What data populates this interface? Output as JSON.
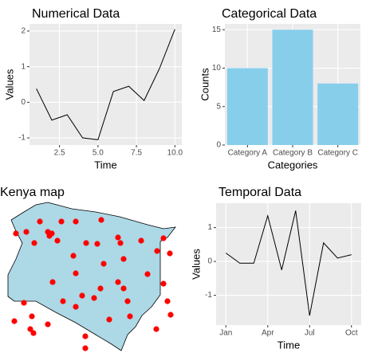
{
  "chart_data": [
    {
      "type": "line",
      "title": "Numerical Data",
      "x_label": "Time",
      "y_label": "Values",
      "x": [
        1,
        2,
        3,
        4,
        5,
        6,
        7,
        8,
        9,
        10
      ],
      "values": [
        0.38,
        -0.5,
        -0.35,
        -1.0,
        -1.05,
        0.3,
        0.45,
        0.05,
        0.95,
        2.05
      ],
      "color": "#000000",
      "xlim": [
        0.55,
        10.45
      ],
      "xticks": [
        2.5,
        {
          "value": 5,
          "label": "5.0"
        },
        {
          "value": 7.5,
          "label": "7.5"
        },
        {
          "value": 10,
          "label": "10.0"
        }
      ],
      "ylim": [
        -1.2,
        2.2
      ],
      "yticks": [
        -1,
        0,
        1,
        2
      ],
      "grid": true
    },
    {
      "type": "bar",
      "title": "Categorical Data",
      "x_label": "Categories",
      "y_label": "Counts",
      "categories": [
        "Category A",
        "Category B",
        "Category C"
      ],
      "values": [
        10,
        15,
        8
      ],
      "color": "#87ceeb",
      "ylim": [
        0,
        15.75
      ],
      "yticks": [
        0,
        5,
        10,
        15
      ],
      "grid": true
    },
    {
      "type": "map",
      "title": "Kenya map",
      "color": "#ff0000",
      "xlim": [
        33.5,
        42.78
      ],
      "ylim": [
        -4.9,
        5
      ],
      "x": [
        34.3,
        34.82,
        35.5,
        35.98,
        35.9,
        36.1,
        36.58,
        37.3,
        38.58,
        39.42,
        36.38,
        37.18,
        35.22,
        37.82,
        38.38,
        39.54,
        40.58,
        41.7,
        41.38,
        42.02,
        39.7,
        38.7,
        40.9,
        37.3,
        36.14,
        39.42,
        38.54,
        39.7,
        37.62,
        38.22,
        36.66,
        34.7,
        35.1,
        41.7,
        41.9,
        39.9,
        40.02,
        42.06,
        38.98,
        37.3,
        35.9,
        34.22,
        35.02,
        35.18,
        37.78,
        37.78,
        41.34
      ],
      "y": [
        2.85,
        2.95,
        3.6,
        2.7,
        2.95,
        2.85,
        3.6,
        3.6,
        3.7,
        2.6,
        2.4,
        1.45,
        2.25,
        2.25,
        2.2,
        2.25,
        2.4,
        2.55,
        1.75,
        1.6,
        1.25,
        0.95,
        0.3,
        0.35,
        -0.2,
        -0.2,
        -0.6,
        -0.6,
        -1.05,
        -1.2,
        -1.4,
        -1.5,
        -2.35,
        -0.3,
        -1.4,
        -1.4,
        -2.35,
        -2.25,
        -2.55,
        -1.75,
        -2.85,
        -2.65,
        -3.15,
        -3.4,
        -3.6,
        -4.35,
        -3.15
      ]
    },
    {
      "type": "line",
      "title": "Temporal Data",
      "x_label": "Time",
      "y_label": "Values",
      "categories": [
        "Jan",
        null,
        null,
        "Apr",
        null,
        null,
        "Jul",
        null,
        null,
        "Oct"
      ],
      "values": [
        0.25,
        -0.05,
        -0.05,
        1.35,
        -0.25,
        1.5,
        -1.6,
        0.55,
        0.1,
        0.2
      ],
      "color": "#000000",
      "ylim": [
        -1.88,
        1.72
      ],
      "yticks": [
        -1,
        0,
        1
      ],
      "grid": true
    }
  ]
}
